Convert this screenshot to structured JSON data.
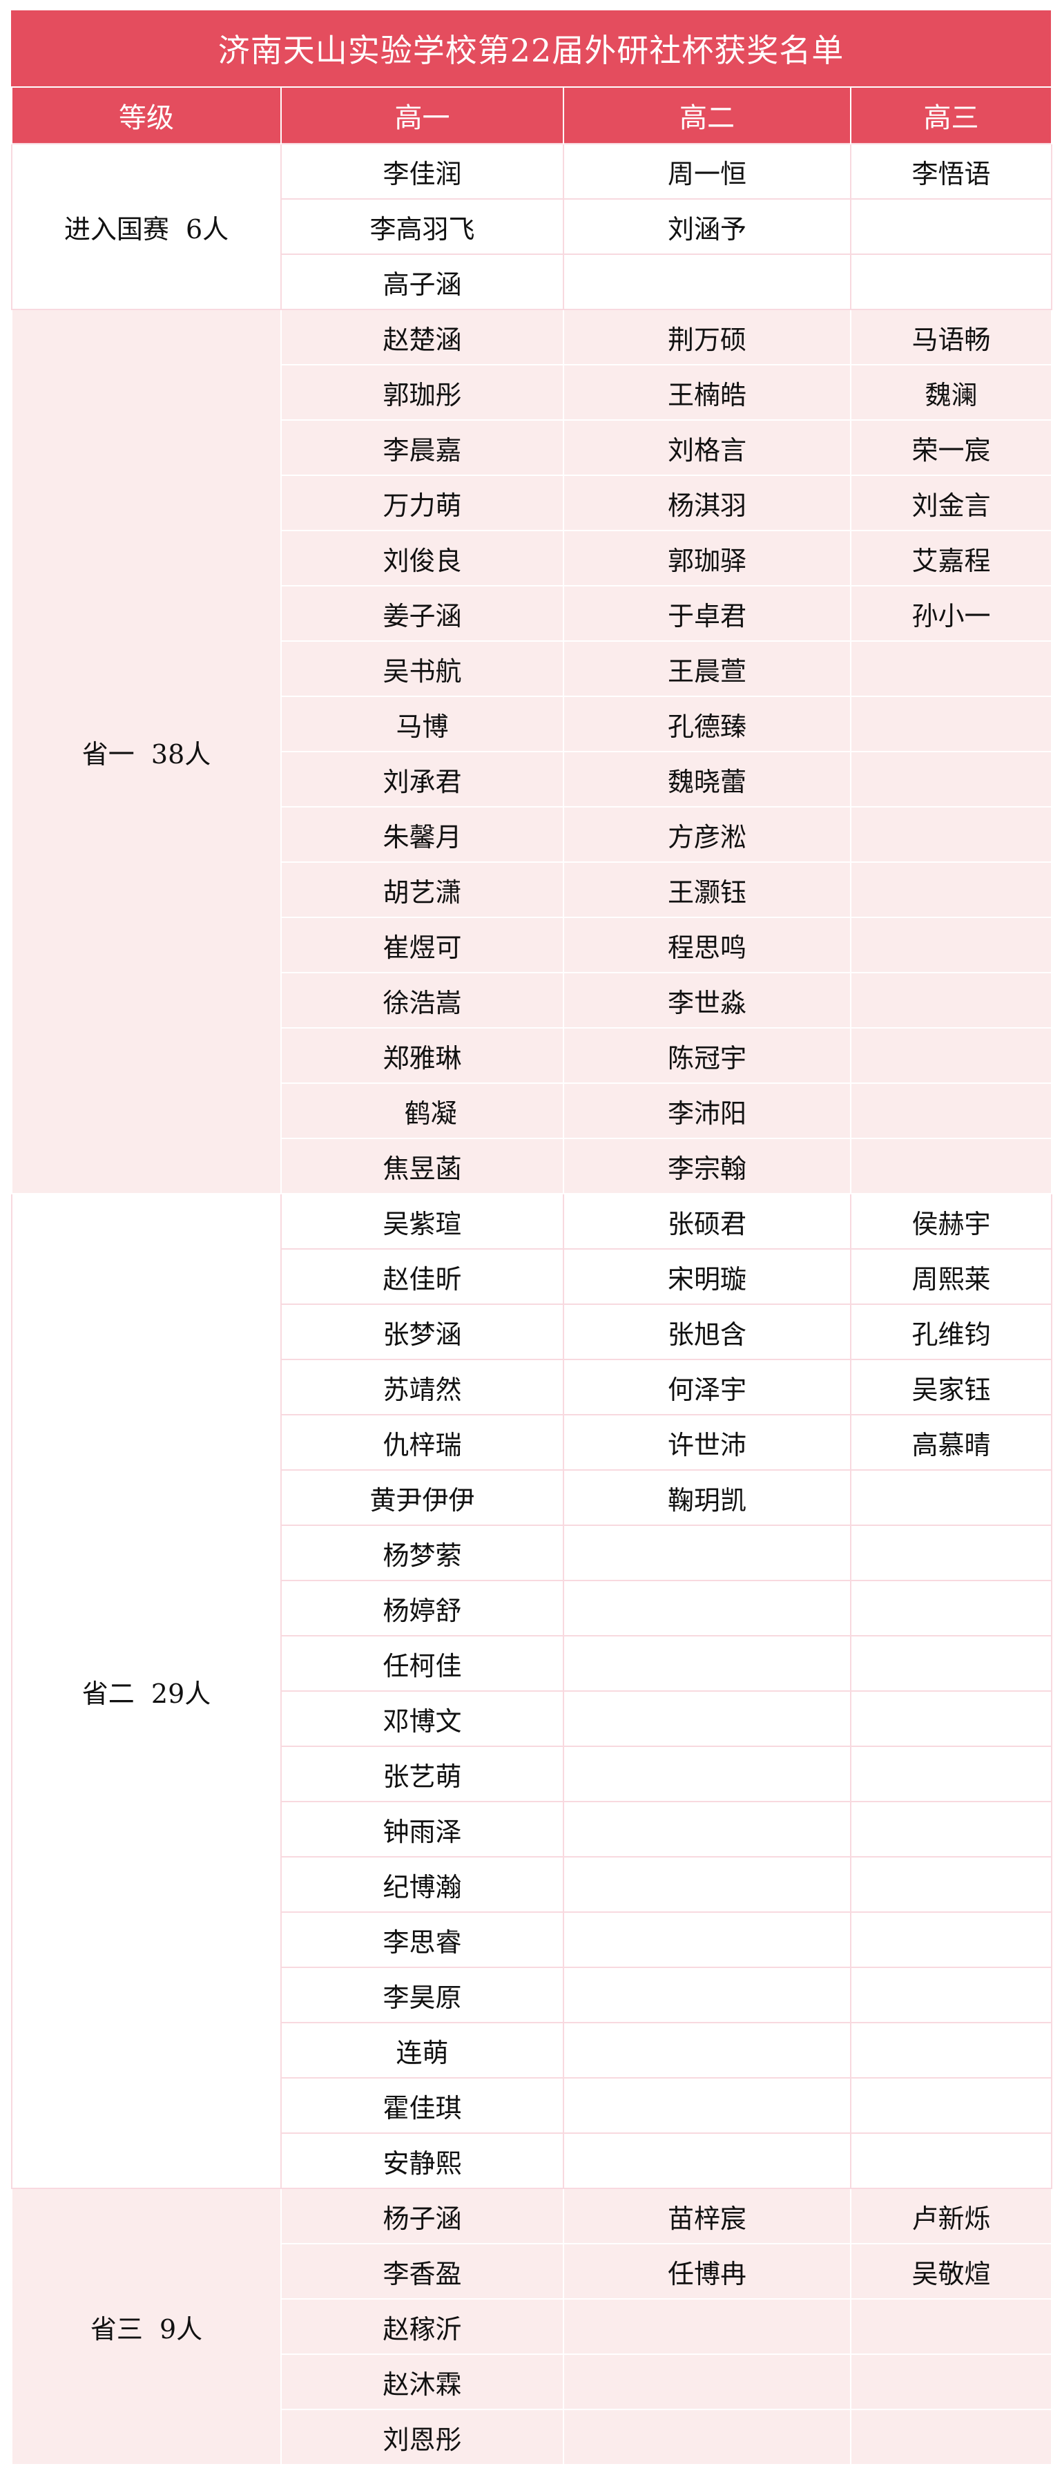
{
  "title": "济南天山实验学校第22届外研社杯获奖名单",
  "headers": [
    "等级",
    "高一",
    "高二",
    "高三"
  ],
  "colors": {
    "header_bg": "#E44D5E",
    "band_bg": "#FBECEC",
    "border": "#F8D9DF"
  },
  "groups": [
    {
      "label": "进入国赛  6人",
      "band": false,
      "rows": [
        [
          "李佳润",
          "周一恒",
          "李悟语"
        ],
        [
          "李高羽飞",
          "刘涵予",
          ""
        ],
        [
          "高子涵",
          "",
          ""
        ]
      ]
    },
    {
      "label": "省一  38人",
      "band": true,
      "rows": [
        [
          "赵楚涵",
          "荆万硕",
          "马语畅"
        ],
        [
          "郭珈彤",
          "王楠皓",
          "魏澜"
        ],
        [
          "李晨嘉",
          "刘格言",
          "荣一宸"
        ],
        [
          "万力萌",
          "杨淇羽",
          "刘金言"
        ],
        [
          "刘俊良",
          "郭珈驿",
          "艾嘉程"
        ],
        [
          "姜子涵",
          "于卓君",
          "孙小一"
        ],
        [
          "吴书航",
          "王晨萱",
          ""
        ],
        [
          "马博",
          "孔德臻",
          ""
        ],
        [
          "刘承君",
          "魏晓蕾",
          ""
        ],
        [
          "朱馨月",
          "方彦淞",
          ""
        ],
        [
          "胡艺潇",
          "王灏钰",
          ""
        ],
        [
          "崔煜可",
          "程思鸣",
          ""
        ],
        [
          "徐浩嵩",
          "李世淼",
          ""
        ],
        [
          "郑雅琳",
          "陈冠宇",
          ""
        ],
        [
          "  鹤凝",
          "李沛阳",
          ""
        ],
        [
          "焦昱菡",
          "李宗翰",
          ""
        ]
      ]
    },
    {
      "label": "省二  29人",
      "band": false,
      "rows": [
        [
          "吴紫瑄",
          "张硕君",
          "侯赫宇"
        ],
        [
          "赵佳昕",
          "宋明璇",
          "周熙莱"
        ],
        [
          "张梦涵",
          "张旭含",
          "孔维钧"
        ],
        [
          "苏靖然",
          "何泽宇",
          "吴家钰"
        ],
        [
          "仇梓瑞",
          "许世沛",
          "高慕晴"
        ],
        [
          "黄尹伊伊",
          "鞠玥凯",
          ""
        ],
        [
          "杨梦萦",
          "",
          ""
        ],
        [
          "杨婷舒",
          "",
          ""
        ],
        [
          "任柯佳",
          "",
          ""
        ],
        [
          "邓博文",
          "",
          ""
        ],
        [
          "张艺萌",
          "",
          ""
        ],
        [
          "钟雨泽",
          "",
          ""
        ],
        [
          "纪博瀚",
          "",
          ""
        ],
        [
          "李思睿",
          "",
          ""
        ],
        [
          "李昊原",
          "",
          ""
        ],
        [
          "连萌",
          "",
          ""
        ],
        [
          "霍佳琪",
          "",
          ""
        ],
        [
          "安静熙",
          "",
          ""
        ]
      ]
    },
    {
      "label": "省三  9人",
      "band": true,
      "rows": [
        [
          "杨子涵",
          "苗梓宸",
          "卢新烁"
        ],
        [
          "李香盈",
          "任博冉",
          "吴敬煊"
        ],
        [
          "赵稼沂",
          "",
          ""
        ],
        [
          "赵沐霖",
          "",
          ""
        ],
        [
          "刘恩彤",
          "",
          ""
        ]
      ]
    }
  ]
}
